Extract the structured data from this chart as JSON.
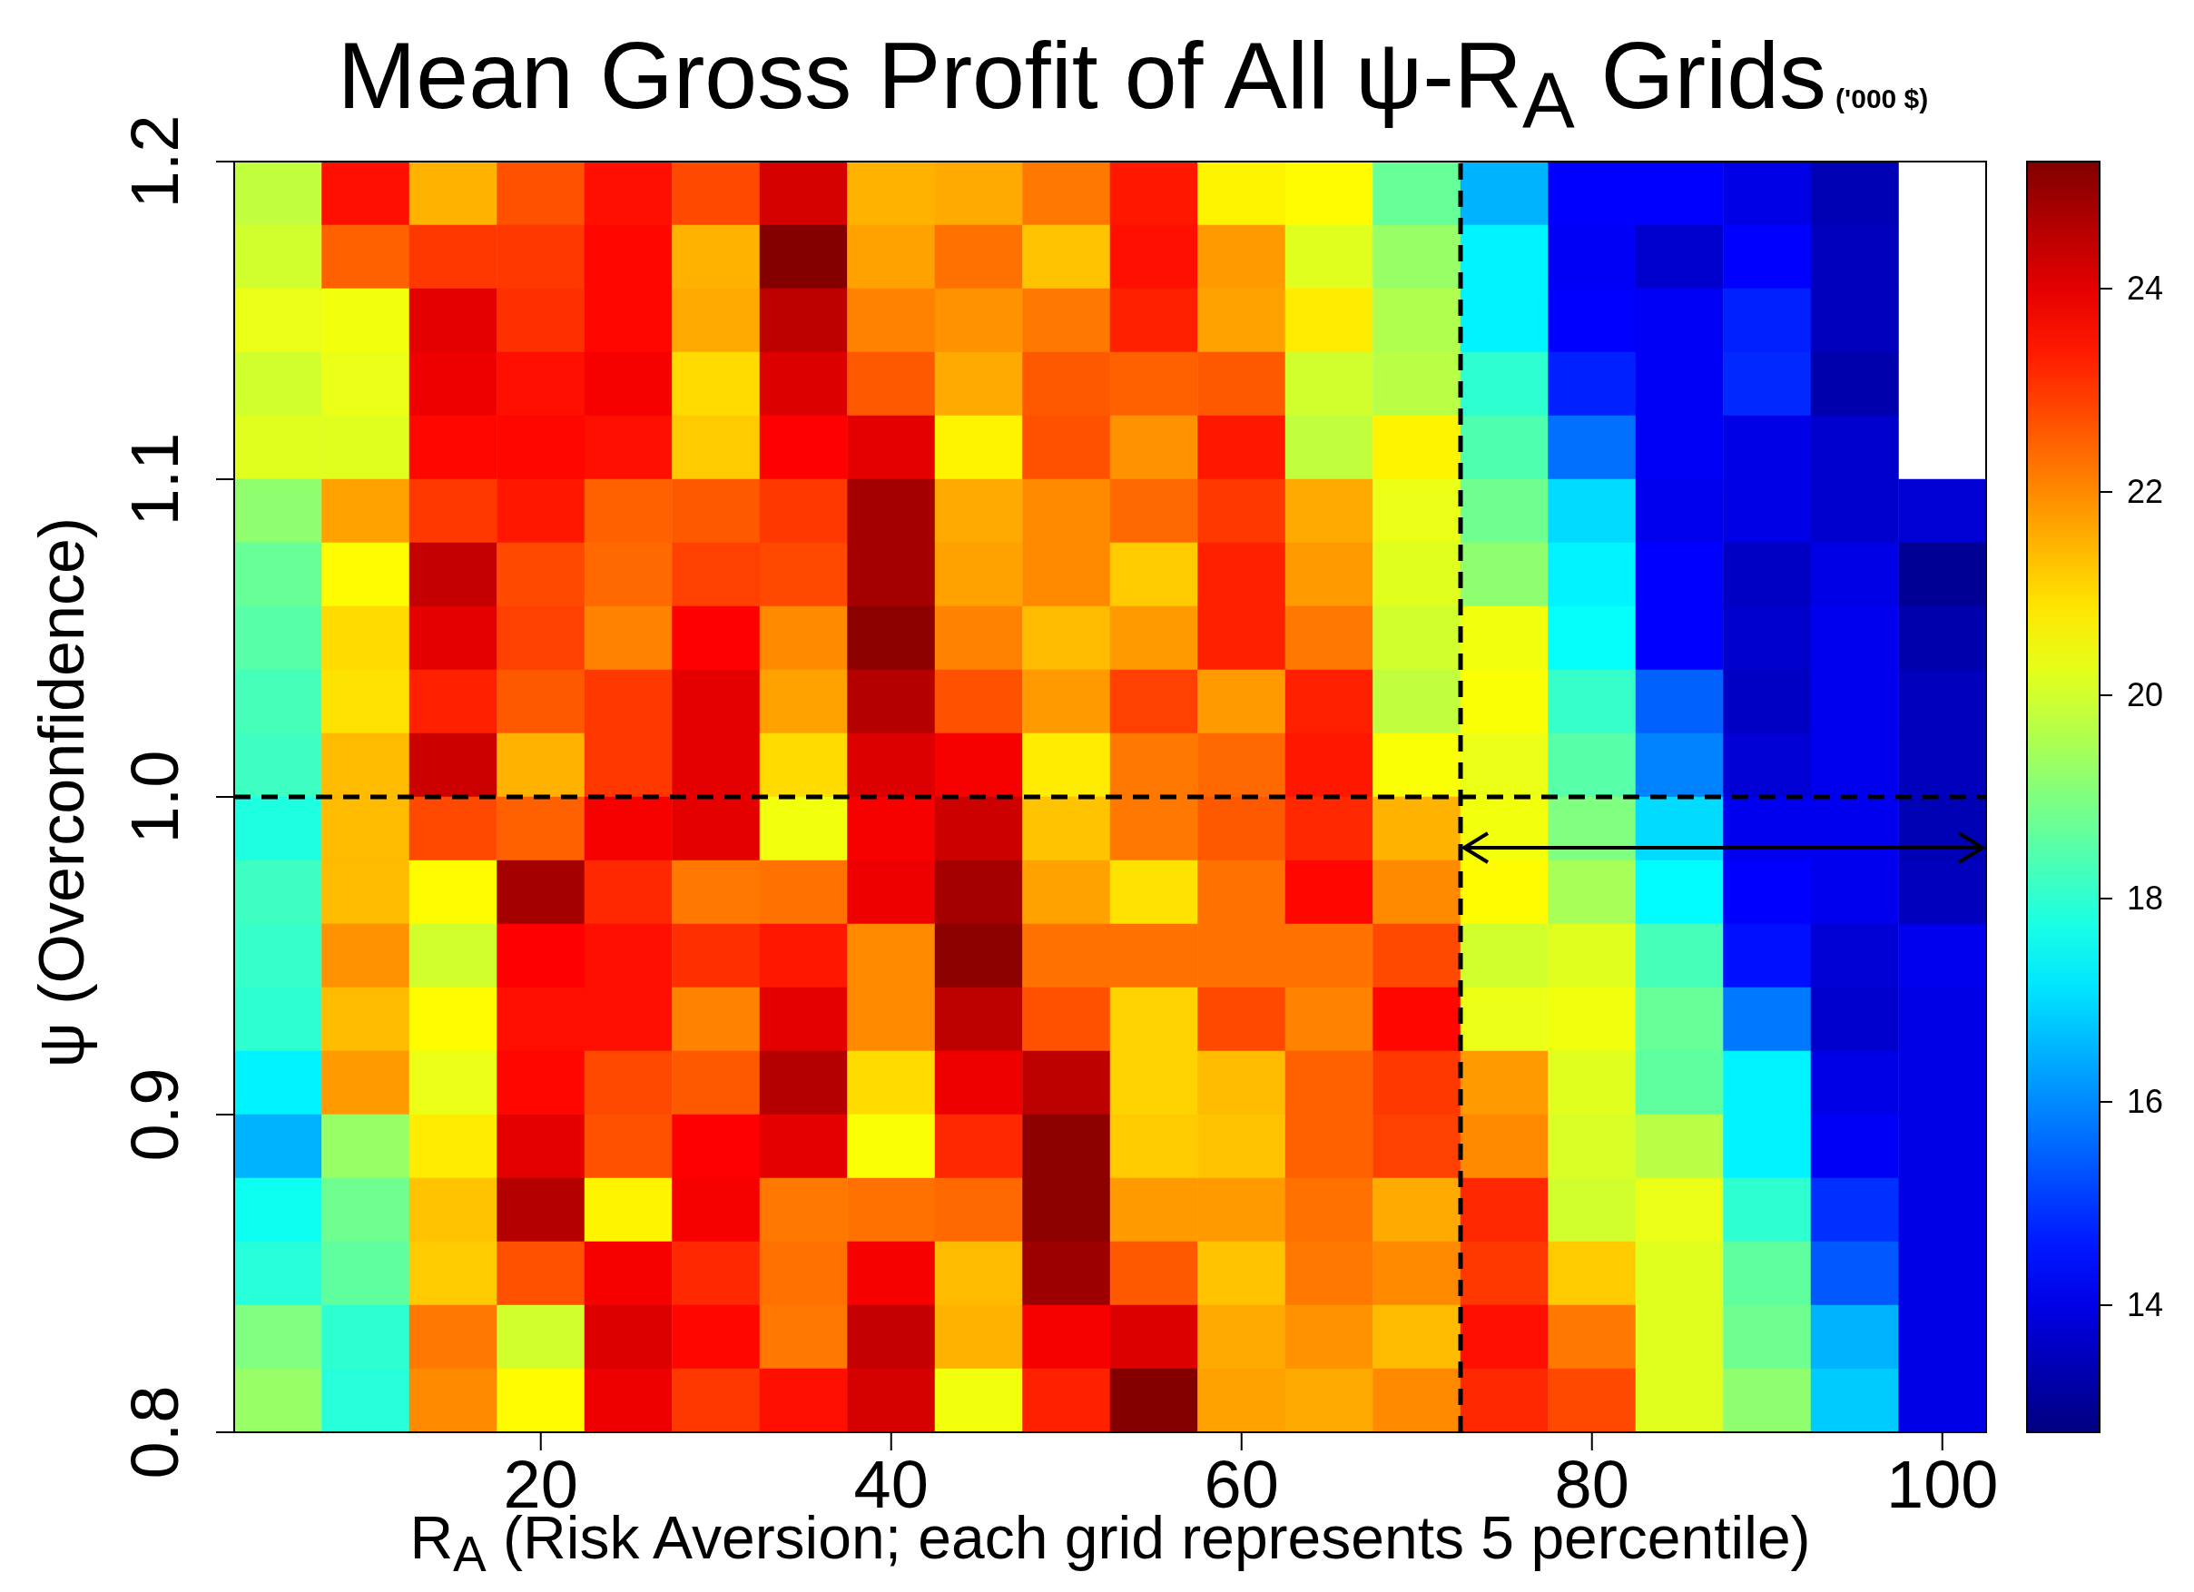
{
  "chart_data": {
    "type": "heatmap",
    "title": "Mean Gross Profit of All ψ-R$_{A}$ Grids",
    "subtitle": "('000 $)",
    "xlabel": "R$_{A}$ (Risk Aversion; each grid represents 5 percentile)",
    "ylabel": "ψ (Overconfidence)",
    "x": [
      5,
      10,
      15,
      20,
      25,
      30,
      35,
      40,
      45,
      50,
      55,
      60,
      65,
      70,
      75,
      80,
      85,
      90,
      95,
      100
    ],
    "xlim": [
      2.5,
      102.5
    ],
    "xticks": [
      20,
      40,
      60,
      80,
      100
    ],
    "ylim": [
      0.8,
      1.2
    ],
    "yticks": [
      0.8,
      0.9,
      {
        "value": 1.0,
        "label": "1.0"
      },
      1.1,
      1.2
    ],
    "clim": [
      12.75,
      25.25
    ],
    "cticks": [
      14,
      16,
      18,
      20,
      22,
      24
    ],
    "cells": [
      [
        19.8,
        23.5,
        21.5,
        22.7,
        23.5,
        22.8,
        24.2,
        21.5,
        21.6,
        22.2,
        23.4,
        20.7,
        20.6,
        18.7,
        16.5,
        14.3,
        14.3,
        14.0,
        13.4,
        null
      ],
      [
        20.0,
        22.5,
        23.0,
        23.0,
        23.6,
        21.5,
        25.2,
        21.7,
        22.3,
        21.3,
        23.5,
        21.8,
        20.2,
        19.3,
        17.3,
        14.2,
        13.7,
        14.3,
        13.5,
        null
      ],
      [
        20.3,
        20.4,
        24.0,
        23.1,
        23.6,
        21.6,
        24.5,
        22.1,
        21.9,
        22.2,
        23.3,
        21.7,
        20.8,
        19.6,
        17.3,
        14.3,
        14.2,
        14.7,
        13.5,
        null
      ],
      [
        20.0,
        20.3,
        23.9,
        23.5,
        23.8,
        21.0,
        24.1,
        22.6,
        21.6,
        22.6,
        22.5,
        22.6,
        20.0,
        19.7,
        18.0,
        14.7,
        14.2,
        14.8,
        13.3,
        null
      ],
      [
        20.2,
        20.2,
        23.6,
        23.6,
        23.5,
        21.2,
        23.7,
        24.0,
        20.7,
        22.7,
        21.9,
        23.4,
        19.8,
        20.7,
        18.4,
        15.7,
        14.2,
        14.0,
        13.7,
        null
      ],
      [
        19.2,
        21.7,
        23.0,
        23.4,
        22.5,
        22.6,
        23.0,
        24.8,
        21.6,
        22.0,
        22.4,
        23.0,
        21.6,
        20.3,
        18.8,
        17.0,
        14.1,
        14.0,
        13.7,
        13.8
      ],
      [
        18.7,
        20.6,
        24.4,
        22.8,
        22.4,
        22.9,
        22.8,
        24.8,
        21.7,
        22.0,
        21.2,
        23.3,
        21.8,
        20.2,
        19.2,
        17.3,
        14.3,
        13.6,
        14.0,
        13.0
      ],
      [
        18.5,
        21.0,
        24.0,
        22.9,
        22.1,
        23.7,
        22.0,
        25.1,
        22.1,
        21.4,
        21.8,
        23.3,
        22.2,
        20.0,
        20.4,
        17.5,
        14.3,
        13.7,
        14.1,
        13.3
      ],
      [
        18.3,
        20.9,
        23.3,
        22.6,
        23.0,
        24.0,
        21.7,
        24.6,
        22.7,
        21.8,
        22.9,
        21.8,
        23.3,
        19.8,
        20.5,
        18.1,
        15.5,
        13.6,
        14.1,
        13.5
      ],
      [
        18.2,
        21.4,
        24.3,
        21.5,
        23.0,
        24.0,
        21.0,
        24.1,
        23.8,
        20.8,
        22.2,
        22.4,
        23.4,
        20.5,
        20.3,
        18.5,
        15.9,
        13.8,
        14.1,
        13.5
      ],
      [
        17.8,
        21.4,
        22.8,
        22.5,
        23.8,
        24.0,
        20.4,
        23.8,
        24.3,
        21.3,
        22.2,
        22.6,
        23.2,
        21.5,
        20.4,
        19.0,
        17.0,
        14.1,
        14.1,
        13.4
      ],
      [
        18.2,
        21.4,
        20.6,
        24.8,
        23.2,
        22.2,
        22.3,
        23.9,
        24.8,
        21.7,
        20.9,
        22.3,
        23.6,
        22.0,
        20.6,
        19.5,
        17.4,
        14.3,
        14.1,
        13.5
      ],
      [
        18.1,
        21.9,
        20.0,
        23.7,
        23.5,
        23.1,
        23.4,
        22.0,
        25.1,
        22.3,
        22.3,
        22.3,
        22.3,
        22.8,
        20.0,
        20.2,
        18.3,
        14.5,
        13.8,
        14.1
      ],
      [
        18.0,
        21.4,
        20.6,
        23.5,
        23.5,
        22.1,
        24.0,
        22.0,
        24.5,
        22.7,
        21.1,
        22.8,
        22.1,
        23.6,
        20.3,
        20.4,
        18.7,
        15.8,
        13.7,
        14.0
      ],
      [
        17.3,
        21.8,
        20.3,
        23.6,
        22.8,
        22.6,
        24.6,
        21.0,
        23.9,
        24.5,
        21.1,
        21.4,
        22.5,
        23.0,
        21.8,
        20.2,
        18.6,
        17.3,
        14.0,
        14.0
      ],
      [
        16.5,
        19.3,
        20.8,
        24.0,
        22.7,
        23.7,
        24.0,
        20.5,
        23.2,
        25.1,
        21.2,
        21.3,
        22.5,
        22.9,
        22.0,
        20.1,
        19.7,
        17.3,
        14.2,
        14.0
      ],
      [
        17.6,
        18.8,
        21.3,
        24.6,
        20.7,
        23.8,
        22.2,
        22.3,
        22.4,
        25.1,
        21.8,
        21.8,
        22.3,
        21.6,
        23.2,
        20.0,
        20.3,
        18.0,
        14.9,
        14.0
      ],
      [
        17.9,
        18.6,
        21.2,
        22.7,
        23.8,
        23.2,
        22.3,
        23.8,
        21.4,
        24.9,
        22.6,
        21.3,
        22.2,
        22.0,
        23.0,
        21.2,
        20.2,
        18.6,
        15.4,
        14.0
      ],
      [
        19.0,
        18.0,
        22.2,
        20.0,
        24.1,
        23.6,
        22.2,
        24.4,
        21.5,
        23.8,
        24.1,
        21.6,
        21.9,
        21.4,
        23.5,
        22.2,
        20.2,
        18.8,
        16.5,
        14.0
      ],
      [
        19.3,
        17.9,
        22.0,
        20.6,
        23.9,
        23.0,
        23.5,
        24.2,
        20.4,
        23.3,
        25.2,
        21.7,
        21.6,
        22.0,
        23.2,
        22.8,
        20.2,
        19.2,
        16.8,
        14.0
      ]
    ],
    "ref_lines": [
      {
        "axis": "x",
        "value": 72.5,
        "color": "#000000",
        "line_style": "dashed"
      },
      {
        "axis": "y",
        "value": 1.0,
        "color": "#000000",
        "line_style": "dashed"
      }
    ]
  }
}
